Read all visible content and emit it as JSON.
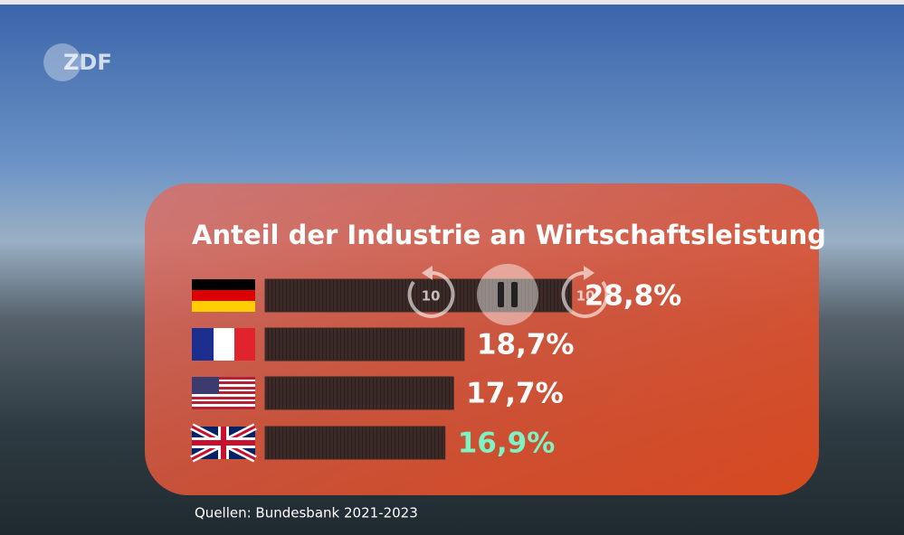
{
  "logo": "ZDF",
  "chart_data": {
    "type": "bar",
    "orientation": "horizontal",
    "title": "Anteil der Industrie an Wirtschaftsleistung",
    "categories": [
      null,
      null,
      null,
      null
    ],
    "values": [
      28.8,
      18.7,
      17.7,
      16.9
    ],
    "value_labels": [
      "28,8%",
      "18,7%",
      "17,7%",
      "16,9%"
    ],
    "color": "#3b2a27",
    "value_label_colors": [
      "#ffffff",
      "#ffffff",
      "#ffffff",
      "#7ff2c4"
    ],
    "source": "Quellen: Bundesbank 2021-2023"
  },
  "player": {
    "rewind_label": "10",
    "forward_label": "10"
  }
}
